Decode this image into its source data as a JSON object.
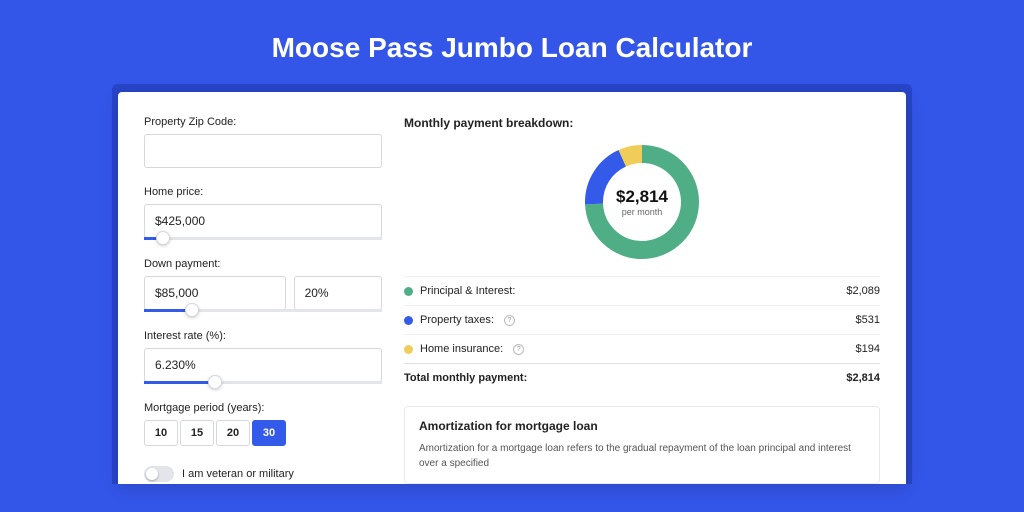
{
  "page": {
    "title": "Moose Pass Jumbo Loan Calculator",
    "background_color": "#3355e8",
    "shadow_color": "#2845c9",
    "card_bg": "#ffffff"
  },
  "form": {
    "zip": {
      "label": "Property Zip Code:",
      "value": ""
    },
    "home_price": {
      "label": "Home price:",
      "value": "$425,000",
      "slider_pct": 8
    },
    "down_payment": {
      "label": "Down payment:",
      "value": "$85,000",
      "pct_value": "20%",
      "slider_pct": 20
    },
    "interest_rate": {
      "label": "Interest rate (%):",
      "value": "6.230%",
      "slider_pct": 30
    },
    "mortgage_period": {
      "label": "Mortgage period (years):",
      "options": [
        "10",
        "15",
        "20",
        "30"
      ],
      "active": "30"
    },
    "veteran_toggle": {
      "label": "I am veteran or military",
      "on": false
    }
  },
  "breakdown": {
    "title": "Monthly payment breakdown:",
    "donut": {
      "amount": "$2,814",
      "sub": "per month",
      "segments": [
        {
          "name": "principal_interest",
          "value": 2089,
          "color": "#4fae85",
          "pct": 74.2
        },
        {
          "name": "property_taxes",
          "value": 531,
          "color": "#335ae8",
          "pct": 18.9
        },
        {
          "name": "home_insurance",
          "value": 194,
          "color": "#f0cc58",
          "pct": 6.9
        }
      ],
      "stroke_width": 18
    },
    "rows": [
      {
        "label": "Principal & Interest:",
        "value": "$2,089",
        "color": "#4fae85",
        "info": false
      },
      {
        "label": "Property taxes:",
        "value": "$531",
        "color": "#335ae8",
        "info": true
      },
      {
        "label": "Home insurance:",
        "value": "$194",
        "color": "#f0cc58",
        "info": true
      }
    ],
    "total": {
      "label": "Total monthly payment:",
      "value": "$2,814"
    }
  },
  "amortization": {
    "title": "Amortization for mortgage loan",
    "text": "Amortization for a mortgage loan refers to the gradual repayment of the loan principal and interest over a specified"
  },
  "colors": {
    "accent": "#335ae8",
    "border": "#d6d8de",
    "text": "#222222"
  }
}
